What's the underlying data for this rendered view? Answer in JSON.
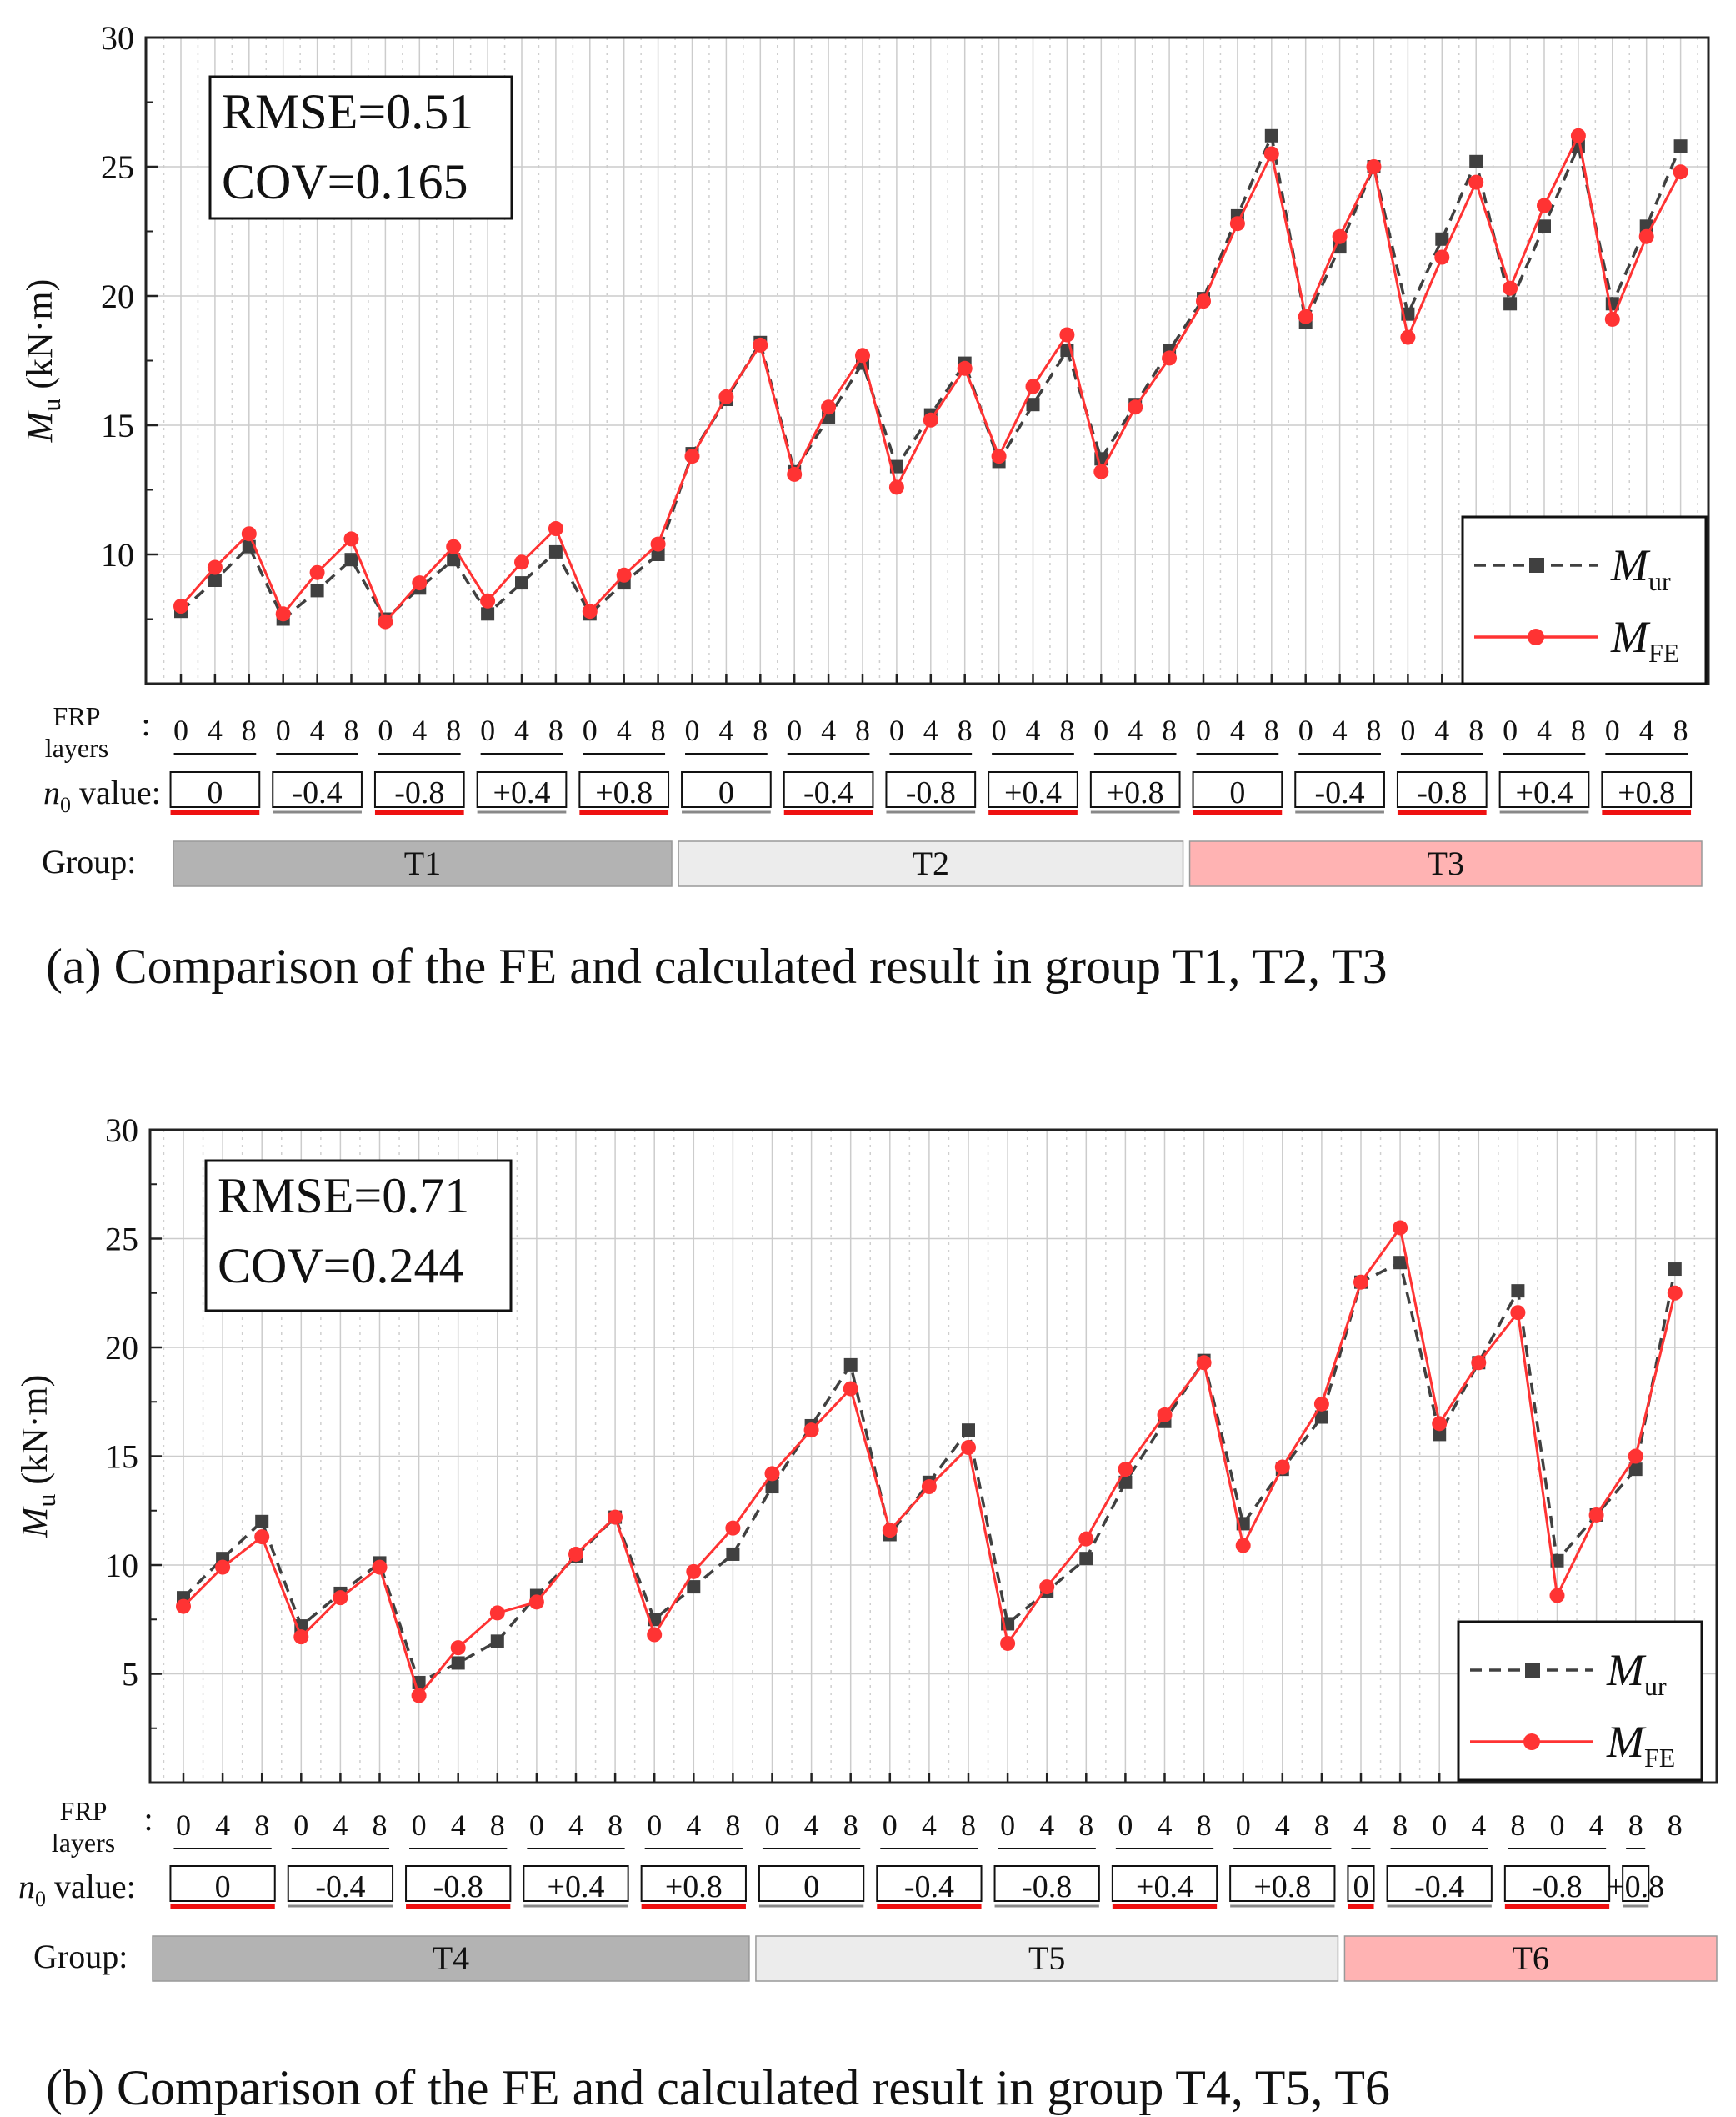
{
  "chart_data": [
    {
      "type": "line",
      "panel": "a",
      "caption": "(a) Comparison of the FE and calculated result in group T1, T2, T3",
      "ylabel_main": "M",
      "ylabel_sub": "u",
      "ylabel_unit": " (kN·m)",
      "ylim": [
        5,
        30
      ],
      "yticks": [
        "10",
        "15",
        "20",
        "25",
        "30"
      ],
      "grid": true,
      "stats": [
        "RMSE=0.51",
        "COV=0.165"
      ],
      "legend": {
        "position": "bottom-right",
        "entries": [
          {
            "main": "M",
            "sub": "ur"
          },
          {
            "main": "M",
            "sub": "FE"
          }
        ]
      },
      "row_labels": {
        "frp_1": "FRP",
        "frp_2": "layers",
        "colon": ":",
        "n0_main": "n",
        "n0_sub": "0",
        "n0_rest": " value:",
        "group": "Group:"
      },
      "x": [
        "0",
        "4",
        "8",
        "0",
        "4",
        "8",
        "0",
        "4",
        "8",
        "0",
        "4",
        "8",
        "0",
        "4",
        "8",
        "0",
        "4",
        "8",
        "0",
        "4",
        "8",
        "0",
        "4",
        "8",
        "0",
        "4",
        "8",
        "0",
        "4",
        "8",
        "0",
        "4",
        "8",
        "0",
        "4",
        "8",
        "0",
        "4",
        "8",
        "0",
        "4",
        "8",
        "0",
        "4",
        "8"
      ],
      "n0_boxes": [
        {
          "label": "0",
          "start": 0,
          "count": 3,
          "underline": "red"
        },
        {
          "label": "-0.4",
          "start": 3,
          "count": 3,
          "underline": "gray"
        },
        {
          "label": "-0.8",
          "start": 6,
          "count": 3,
          "underline": "red"
        },
        {
          "label": "+0.4",
          "start": 9,
          "count": 3,
          "underline": "gray"
        },
        {
          "label": "+0.8",
          "start": 12,
          "count": 3,
          "underline": "red"
        },
        {
          "label": "0",
          "start": 15,
          "count": 3,
          "underline": "gray"
        },
        {
          "label": "-0.4",
          "start": 18,
          "count": 3,
          "underline": "red"
        },
        {
          "label": "-0.8",
          "start": 21,
          "count": 3,
          "underline": "gray"
        },
        {
          "label": "+0.4",
          "start": 24,
          "count": 3,
          "underline": "red"
        },
        {
          "label": "+0.8",
          "start": 27,
          "count": 3,
          "underline": "gray"
        },
        {
          "label": "0",
          "start": 30,
          "count": 3,
          "underline": "red"
        },
        {
          "label": "-0.4",
          "start": 33,
          "count": 3,
          "underline": "gray"
        },
        {
          "label": "-0.8",
          "start": 36,
          "count": 3,
          "underline": "red"
        },
        {
          "label": "+0.4",
          "start": 39,
          "count": 3,
          "underline": "gray"
        },
        {
          "label": "+0.8",
          "start": 42,
          "count": 3,
          "underline": "red"
        }
      ],
      "groups": [
        {
          "label": "T1",
          "start": 0,
          "count": 15,
          "fill": "#b3b3b3"
        },
        {
          "label": "T2",
          "start": 15,
          "count": 15,
          "fill": "#ececec"
        },
        {
          "label": "T3",
          "start": 30,
          "count": 15,
          "fill": "#ffb3b3"
        }
      ],
      "series": [
        {
          "name": "Mur",
          "color": "#404040",
          "values": [
            7.8,
            9.0,
            10.3,
            7.5,
            8.6,
            9.8,
            7.5,
            8.7,
            9.8,
            7.7,
            8.9,
            10.1,
            7.7,
            8.9,
            10.0,
            13.9,
            16.0,
            18.2,
            13.2,
            15.3,
            17.4,
            13.4,
            15.4,
            17.4,
            13.6,
            15.8,
            17.9,
            13.7,
            15.8,
            17.9,
            19.9,
            23.1,
            26.2,
            19.0,
            21.9,
            25.0,
            19.3,
            22.2,
            25.2,
            19.7,
            22.7,
            25.8,
            19.7,
            22.7,
            25.8
          ]
        },
        {
          "name": "MFE",
          "color": "#ff3333",
          "values": [
            8.0,
            9.5,
            10.8,
            7.7,
            9.3,
            10.6,
            7.4,
            8.9,
            10.3,
            8.2,
            9.7,
            11.0,
            7.8,
            9.2,
            10.4,
            13.8,
            16.1,
            18.1,
            13.1,
            15.7,
            17.7,
            12.6,
            15.2,
            17.2,
            13.8,
            16.5,
            18.5,
            13.2,
            15.7,
            17.6,
            19.8,
            22.8,
            25.5,
            19.2,
            22.3,
            25.0,
            18.4,
            21.5,
            24.4,
            20.3,
            23.5,
            26.2,
            19.1,
            22.3,
            24.8
          ]
        }
      ]
    },
    {
      "type": "line",
      "panel": "b",
      "caption": "(b) Comparison of the FE and calculated result in group T4, T5, T6",
      "ylabel_main": "M",
      "ylabel_sub": "u",
      "ylabel_unit": " (kN·m)",
      "ylim": [
        0,
        30
      ],
      "yticks": [
        "5",
        "10",
        "15",
        "20",
        "25",
        "30"
      ],
      "grid": true,
      "stats": [
        "RMSE=0.71",
        "COV=0.244"
      ],
      "legend": {
        "position": "bottom-right",
        "entries": [
          {
            "main": "M",
            "sub": "ur"
          },
          {
            "main": "M",
            "sub": "FE"
          }
        ]
      },
      "row_labels": {
        "frp_1": "FRP",
        "frp_2": "layers",
        "colon": ":",
        "n0_main": "n",
        "n0_sub": "0",
        "n0_rest": " value:",
        "group": "Group:"
      },
      "x": [
        "0",
        "4",
        "8",
        "0",
        "4",
        "8",
        "0",
        "4",
        "8",
        "0",
        "4",
        "8",
        "0",
        "4",
        "8",
        "0",
        "4",
        "8",
        "0",
        "4",
        "8",
        "0",
        "4",
        "8",
        "0",
        "4",
        "8",
        "0",
        "4",
        "8",
        "4",
        "8",
        "0",
        "4",
        "8",
        "0",
        "4",
        "8",
        "8"
      ],
      "n0_boxes": [
        {
          "label": "0",
          "start": 0,
          "count": 3,
          "underline": "red"
        },
        {
          "label": "-0.4",
          "start": 3,
          "count": 3,
          "underline": "gray"
        },
        {
          "label": "-0.8",
          "start": 6,
          "count": 3,
          "underline": "red"
        },
        {
          "label": "+0.4",
          "start": 9,
          "count": 3,
          "underline": "gray"
        },
        {
          "label": "+0.8",
          "start": 12,
          "count": 3,
          "underline": "red"
        },
        {
          "label": "0",
          "start": 15,
          "count": 3,
          "underline": "gray"
        },
        {
          "label": "-0.4",
          "start": 18,
          "count": 3,
          "underline": "red"
        },
        {
          "label": "-0.8",
          "start": 21,
          "count": 3,
          "underline": "gray"
        },
        {
          "label": "+0.4",
          "start": 24,
          "count": 3,
          "underline": "red"
        },
        {
          "label": "+0.8",
          "start": 27,
          "count": 3,
          "underline": "gray"
        },
        {
          "label": "0",
          "start": 30,
          "count": 1,
          "underline": "red"
        },
        {
          "label": "-0.4",
          "start": 31,
          "count": 3,
          "underline": "gray"
        },
        {
          "label": "-0.8",
          "start": 34,
          "count": 3,
          "underline": "red"
        },
        {
          "label": "+0.8",
          "start": 37,
          "count": 1,
          "underline": "gray"
        }
      ],
      "groups": [
        {
          "label": "T4",
          "start": 0,
          "count": 15,
          "fill": "#b3b3b3"
        },
        {
          "label": "T5",
          "start": 15,
          "count": 15,
          "fill": "#ececec"
        },
        {
          "label": "T6",
          "start": 30,
          "count": 9,
          "fill": "#ffb3b3"
        }
      ],
      "series": [
        {
          "name": "Mur",
          "color": "#404040",
          "values": [
            8.5,
            10.3,
            12.0,
            7.2,
            8.7,
            10.1,
            4.6,
            5.5,
            6.5,
            8.6,
            10.4,
            12.2,
            7.5,
            9.0,
            10.5,
            13.6,
            16.4,
            19.2,
            11.4,
            13.8,
            16.2,
            7.3,
            8.8,
            10.3,
            13.8,
            16.6,
            19.4,
            11.9,
            14.4,
            16.8,
            23.0,
            23.9,
            16.0,
            19.3,
            22.6,
            10.2,
            12.3,
            14.4,
            23.6
          ]
        },
        {
          "name": "MFE",
          "color": "#ff3333",
          "values": [
            8.1,
            9.9,
            11.3,
            6.7,
            8.5,
            9.9,
            4.0,
            6.2,
            7.8,
            8.3,
            10.5,
            12.2,
            6.8,
            9.7,
            11.7,
            14.2,
            16.2,
            18.1,
            11.6,
            13.6,
            15.4,
            6.4,
            9.0,
            11.2,
            14.4,
            16.9,
            19.3,
            10.9,
            14.5,
            17.4,
            23.0,
            25.5,
            16.5,
            19.3,
            21.6,
            8.6,
            12.3,
            15.0,
            22.5
          ]
        }
      ]
    }
  ]
}
